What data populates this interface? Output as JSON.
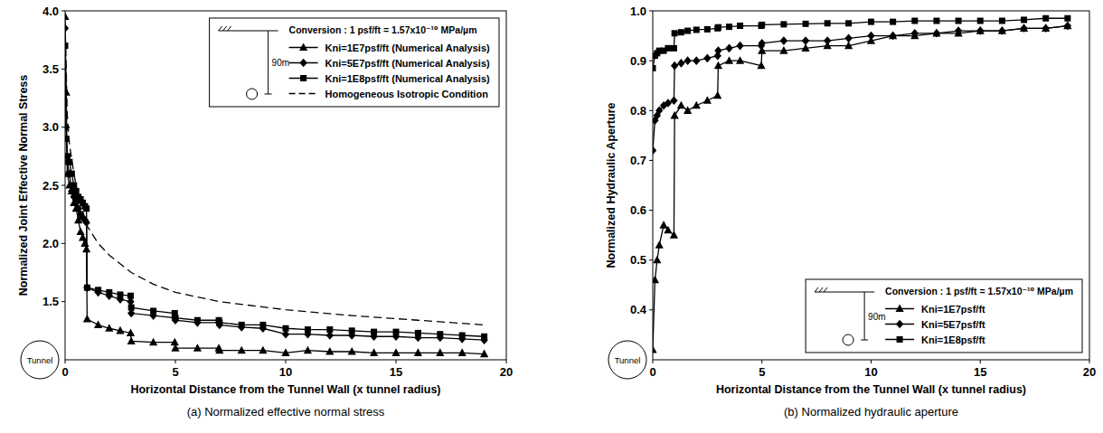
{
  "chart_data": [
    {
      "type": "line",
      "title": "(a) Normalized effective normal stress",
      "x_label": "Horizontal Distance from the Tunnel Wall (x tunnel radius)",
      "y_label": "Normalized Joint Effective Normal Stress",
      "xlim": [
        0,
        20
      ],
      "xticks": [
        0,
        5,
        10,
        15,
        20
      ],
      "ylim": [
        1.0,
        4.0
      ],
      "yticks": [
        1.5,
        {
          "value": 2,
          "label": "2.0"
        },
        2.5,
        {
          "value": 3,
          "label": "3.0"
        },
        3.5,
        {
          "value": 4,
          "label": "4.0"
        }
      ],
      "grid": false,
      "legend": "upper right",
      "annotations": [
        "Tunnel",
        "90m",
        "Conversion : 1 psf/ft = 1.57x10⁻¹⁰ MPa/µm"
      ],
      "series": [
        {
          "name": "Kni=1E7psf/ft (Numerical Analysis)",
          "color": "#000000",
          "marker": "triangle",
          "line_style": "solid",
          "x": [
            0,
            0.05,
            0.1,
            0.2,
            0.3,
            0.4,
            0.5,
            0.6,
            0.7,
            0.8,
            0.9,
            0.97,
            1.0,
            1.5,
            2,
            2.5,
            2.97,
            3.0,
            4,
            4.97,
            5.0,
            6,
            6.97,
            7.0,
            8,
            8.97,
            10,
            11,
            12,
            13,
            14,
            15,
            16,
            17,
            18,
            19
          ],
          "values": [
            3.95,
            3.3,
            2.6,
            2.5,
            2.45,
            2.35,
            2.3,
            2.2,
            2.1,
            2.05,
            2.0,
            1.95,
            1.35,
            1.3,
            1.27,
            1.25,
            1.23,
            1.16,
            1.15,
            1.15,
            1.1,
            1.1,
            1.1,
            1.08,
            1.08,
            1.08,
            1.06,
            1.08,
            1.07,
            1.07,
            1.06,
            1.06,
            1.06,
            1.06,
            1.06,
            1.05
          ]
        },
        {
          "name": "Kni=5E7psf/ft (Numerical Analysis)",
          "color": "#000000",
          "marker": "diamond",
          "line_style": "solid",
          "x": [
            0,
            0.05,
            0.1,
            0.2,
            0.3,
            0.4,
            0.5,
            0.6,
            0.7,
            0.8,
            0.9,
            0.97,
            1.0,
            1.5,
            2,
            2.5,
            2.97,
            3.0,
            4,
            4.97,
            5.0,
            6,
            6.97,
            7.0,
            8,
            8.97,
            10,
            11,
            12,
            13,
            14,
            15,
            16,
            17,
            18,
            19
          ],
          "values": [
            3.85,
            3.0,
            2.7,
            2.6,
            2.45,
            2.4,
            2.35,
            2.3,
            2.25,
            2.22,
            2.2,
            2.18,
            1.62,
            1.58,
            1.55,
            1.52,
            1.5,
            1.4,
            1.38,
            1.36,
            1.34,
            1.32,
            1.32,
            1.3,
            1.28,
            1.27,
            1.22,
            1.22,
            1.21,
            1.21,
            1.2,
            1.2,
            1.19,
            1.19,
            1.18,
            1.17
          ]
        },
        {
          "name": "Kni=1E8psf/ft (Numerical Analysis)",
          "color": "#000000",
          "marker": "square",
          "line_style": "solid",
          "x": [
            0,
            0.05,
            0.1,
            0.2,
            0.3,
            0.4,
            0.5,
            0.6,
            0.7,
            0.8,
            0.9,
            0.97,
            1.0,
            1.5,
            2,
            2.5,
            2.97,
            3.0,
            4,
            4.97,
            5.0,
            6,
            6.97,
            7.0,
            8,
            8.97,
            10,
            11,
            12,
            13,
            14,
            15,
            16,
            17,
            18,
            19
          ],
          "values": [
            3.7,
            2.9,
            2.75,
            2.7,
            2.6,
            2.5,
            2.45,
            2.4,
            2.38,
            2.35,
            2.32,
            2.3,
            1.62,
            1.6,
            1.58,
            1.56,
            1.55,
            1.45,
            1.42,
            1.4,
            1.36,
            1.34,
            1.34,
            1.32,
            1.3,
            1.3,
            1.27,
            1.26,
            1.26,
            1.25,
            1.24,
            1.24,
            1.23,
            1.22,
            1.21,
            1.2
          ]
        },
        {
          "name": "Homogeneous Isotropic Condition",
          "color": "#000000",
          "marker": "none",
          "line_style": "dashed",
          "x": [
            0,
            0.1,
            0.2,
            0.4,
            0.6,
            1,
            1.5,
            2,
            3,
            4,
            5,
            7,
            10,
            13,
            16,
            19
          ],
          "values": [
            3.9,
            3.1,
            2.85,
            2.6,
            2.4,
            2.15,
            2.0,
            1.9,
            1.75,
            1.65,
            1.58,
            1.5,
            1.43,
            1.38,
            1.34,
            1.3
          ]
        }
      ]
    },
    {
      "type": "line",
      "title": "(b) Normalized hydraulic aperture",
      "x_label": "Horizontal Distance from the Tunnel Wall (x tunnel radius)",
      "y_label": "Normalized Hydraulic Aperture",
      "xlim": [
        0,
        20
      ],
      "xticks": [
        0,
        5,
        10,
        15,
        20
      ],
      "ylim": [
        0.3,
        1.0
      ],
      "yticks": [
        0.4,
        0.5,
        0.6,
        0.7,
        0.8,
        0.9,
        {
          "value": 1,
          "label": "1.0"
        }
      ],
      "grid": false,
      "legend": "lower right",
      "annotations": [
        "Tunnel",
        "90m",
        "Conversion : 1 psf/ft = 1.57x10⁻¹⁰ MPa/µm"
      ],
      "series": [
        {
          "name": "Kni=1E7psf/ft",
          "color": "#000000",
          "marker": "triangle",
          "line_style": "solid",
          "x": [
            0,
            0.1,
            0.2,
            0.3,
            0.5,
            0.7,
            0.97,
            1.0,
            1.3,
            1.6,
            2,
            2.5,
            2.97,
            3.0,
            3.5,
            4,
            4.97,
            5.0,
            6,
            7,
            8,
            8.97,
            10,
            11,
            12,
            13,
            14,
            15,
            16,
            17,
            18,
            19
          ],
          "values": [
            0.32,
            0.46,
            0.5,
            0.53,
            0.57,
            0.56,
            0.55,
            0.79,
            0.81,
            0.8,
            0.81,
            0.82,
            0.83,
            0.89,
            0.9,
            0.9,
            0.89,
            0.92,
            0.92,
            0.925,
            0.93,
            0.93,
            0.94,
            0.95,
            0.95,
            0.955,
            0.955,
            0.96,
            0.96,
            0.965,
            0.965,
            0.97
          ]
        },
        {
          "name": "Kni=5E7psf/ft",
          "color": "#000000",
          "marker": "diamond",
          "line_style": "solid",
          "x": [
            0,
            0.1,
            0.2,
            0.3,
            0.5,
            0.7,
            0.97,
            1.0,
            1.3,
            1.6,
            2,
            2.5,
            2.97,
            3.0,
            3.5,
            4,
            4.97,
            5.0,
            6,
            7,
            8,
            8.97,
            10,
            11,
            12,
            13,
            14,
            15,
            16,
            17,
            18,
            19
          ],
          "values": [
            0.72,
            0.78,
            0.79,
            0.8,
            0.81,
            0.815,
            0.82,
            0.89,
            0.895,
            0.9,
            0.9,
            0.905,
            0.91,
            0.92,
            0.925,
            0.93,
            0.93,
            0.935,
            0.94,
            0.94,
            0.94,
            0.945,
            0.95,
            0.95,
            0.955,
            0.955,
            0.96,
            0.96,
            0.96,
            0.965,
            0.965,
            0.97
          ]
        },
        {
          "name": "Kni=1E8psf/ft",
          "color": "#000000",
          "marker": "square",
          "line_style": "solid",
          "x": [
            0,
            0.1,
            0.2,
            0.3,
            0.5,
            0.7,
            0.97,
            1.0,
            1.3,
            1.6,
            2,
            2.5,
            2.97,
            3.0,
            3.5,
            4,
            4.97,
            5.0,
            6,
            7,
            8,
            8.97,
            10,
            11,
            12,
            13,
            14,
            15,
            16,
            17,
            18,
            19
          ],
          "values": [
            0.885,
            0.91,
            0.915,
            0.92,
            0.92,
            0.925,
            0.925,
            0.955,
            0.957,
            0.96,
            0.962,
            0.963,
            0.965,
            0.967,
            0.968,
            0.97,
            0.97,
            0.972,
            0.973,
            0.974,
            0.975,
            0.975,
            0.978,
            0.978,
            0.98,
            0.98,
            0.98,
            0.98,
            0.98,
            0.982,
            0.985,
            0.985
          ]
        }
      ]
    }
  ]
}
